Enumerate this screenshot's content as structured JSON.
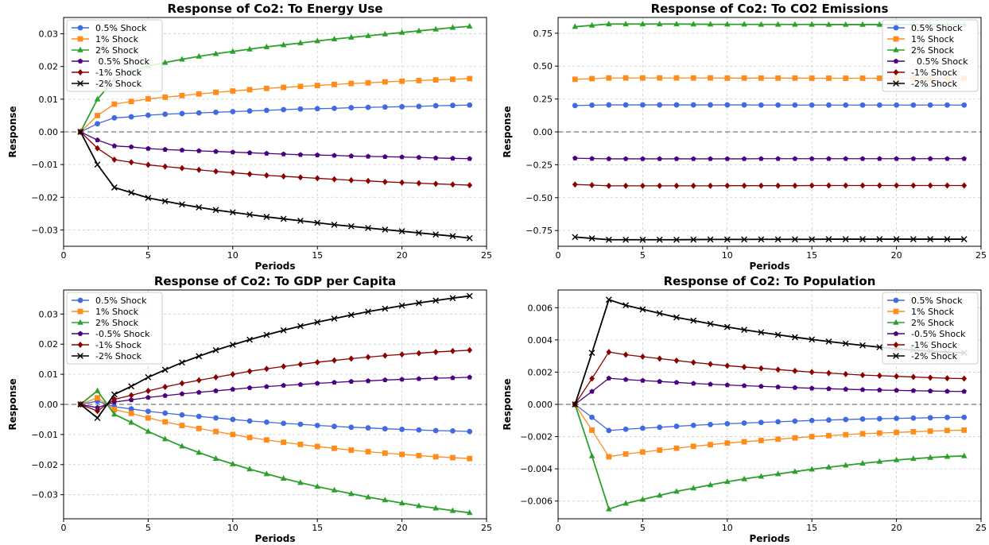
{
  "colors": {
    "0.5%": "#4169e1",
    "1%": "#ff8c1a",
    "2%": "#2ca02c",
    "-0.5%": "#4b0082",
    "-1%": "#8b0000",
    "-2%": "#000000"
  },
  "chart_data": [
    {
      "type": "line",
      "title": "Response of Co2: To Energy Use",
      "xlabel": "Periods",
      "ylabel": "Response",
      "xlim": [
        0,
        25
      ],
      "ylim": [
        -0.035,
        0.035
      ],
      "xticks": [
        0,
        5,
        10,
        15,
        20,
        25
      ],
      "xtick_labels": [
        "0",
        "5",
        "10",
        "15",
        "20",
        "25"
      ],
      "yticks": [
        -0.03,
        -0.02,
        -0.01,
        0.0,
        0.01,
        0.02,
        0.03
      ],
      "ytick_labels": [
        "−0.03",
        "−0.02",
        "−0.01",
        "0.00",
        "0.01",
        "0.02",
        "0.03"
      ],
      "grid": true,
      "legend": "top-left",
      "zero_line": true,
      "x": [
        1,
        2,
        3,
        4,
        5,
        6,
        7,
        8,
        9,
        10,
        11,
        12,
        13,
        14,
        15,
        16,
        17,
        18,
        19,
        20,
        21,
        22,
        23,
        24
      ],
      "series": [
        {
          "name": "0.5% Shock",
          "color_key": "0.5%",
          "marker": "circle",
          "values": [
            0,
            0.0025,
            0.0043,
            0.0046,
            0.0051,
            0.0054,
            0.0056,
            0.0058,
            0.006,
            0.0062,
            0.0064,
            0.0066,
            0.0068,
            0.007,
            0.0071,
            0.0072,
            0.0074,
            0.0075,
            0.0076,
            0.0077,
            0.0078,
            0.008,
            0.0081,
            0.0082
          ]
        },
        {
          "name": "1% Shock",
          "color_key": "1%",
          "marker": "square",
          "values": [
            0,
            0.005,
            0.0085,
            0.0093,
            0.0101,
            0.0106,
            0.0111,
            0.0116,
            0.0121,
            0.0125,
            0.0129,
            0.0133,
            0.0136,
            0.0139,
            0.0142,
            0.0145,
            0.0148,
            0.015,
            0.0153,
            0.0155,
            0.0157,
            0.0159,
            0.0161,
            0.0163
          ]
        },
        {
          "name": "2% Shock",
          "color_key": "2%",
          "marker": "triangle",
          "values": [
            0,
            0.01,
            0.016,
            0.0185,
            0.0202,
            0.0212,
            0.0222,
            0.0231,
            0.0239,
            0.0246,
            0.0253,
            0.026,
            0.0266,
            0.0272,
            0.0278,
            0.0284,
            0.0289,
            0.0294,
            0.0299,
            0.0304,
            0.0309,
            0.0314,
            0.0319,
            0.0323
          ]
        },
        {
          "name": " 0.5% Shock",
          "color_key": "-0.5%",
          "marker": "pentagon",
          "values": [
            0,
            -0.0025,
            -0.0043,
            -0.0046,
            -0.0051,
            -0.0054,
            -0.0056,
            -0.0058,
            -0.006,
            -0.0062,
            -0.0064,
            -0.0066,
            -0.0068,
            -0.007,
            -0.0071,
            -0.0072,
            -0.0074,
            -0.0075,
            -0.0076,
            -0.0077,
            -0.0078,
            -0.008,
            -0.0081,
            -0.0082
          ]
        },
        {
          "name": "-1% Shock",
          "color_key": "-1%",
          "marker": "diamond",
          "values": [
            0,
            -0.005,
            -0.0085,
            -0.0093,
            -0.0101,
            -0.0106,
            -0.0111,
            -0.0116,
            -0.0121,
            -0.0125,
            -0.0129,
            -0.0133,
            -0.0136,
            -0.0139,
            -0.0142,
            -0.0145,
            -0.0148,
            -0.015,
            -0.0153,
            -0.0155,
            -0.0157,
            -0.0159,
            -0.0161,
            -0.0163
          ]
        },
        {
          "name": "-2% Shock",
          "color_key": "-2%",
          "marker": "x",
          "values": [
            0,
            -0.01,
            -0.017,
            -0.0186,
            -0.0202,
            -0.0212,
            -0.0222,
            -0.0231,
            -0.0239,
            -0.0246,
            -0.0253,
            -0.026,
            -0.0266,
            -0.0272,
            -0.0278,
            -0.0284,
            -0.0289,
            -0.0294,
            -0.0299,
            -0.0304,
            -0.0309,
            -0.0314,
            -0.0319,
            -0.0325
          ]
        }
      ]
    },
    {
      "type": "line",
      "title": "Response of Co2: To CO2 Emissions",
      "xlabel": "Periods",
      "ylabel": "Response",
      "xlim": [
        0,
        25
      ],
      "ylim": [
        -0.87,
        0.87
      ],
      "xticks": [
        0,
        5,
        10,
        15,
        20,
        25
      ],
      "xtick_labels": [
        "0",
        "5",
        "10",
        "15",
        "20",
        "25"
      ],
      "yticks": [
        -0.75,
        -0.5,
        -0.25,
        0.0,
        0.25,
        0.5,
        0.75
      ],
      "ytick_labels": [
        "−0.75",
        "−0.50",
        "−0.25",
        "0.00",
        "0.25",
        "0.50",
        "0.75"
      ],
      "grid": true,
      "legend": "top-right",
      "zero_line": true,
      "x": [
        1,
        2,
        3,
        4,
        5,
        6,
        7,
        8,
        9,
        10,
        11,
        12,
        13,
        14,
        15,
        16,
        17,
        18,
        19,
        20,
        21,
        22,
        23,
        24
      ],
      "series": [
        {
          "name": "0.5% Shock",
          "color_key": "0.5%",
          "marker": "circle",
          "values": [
            0.2,
            0.203,
            0.205,
            0.205,
            0.205,
            0.205,
            0.205,
            0.205,
            0.205,
            0.205,
            0.205,
            0.204,
            0.204,
            0.204,
            0.204,
            0.204,
            0.204,
            0.204,
            0.204,
            0.204,
            0.204,
            0.204,
            0.204,
            0.204
          ]
        },
        {
          "name": "1% Shock",
          "color_key": "1%",
          "marker": "square",
          "values": [
            0.4,
            0.405,
            0.41,
            0.41,
            0.41,
            0.41,
            0.41,
            0.41,
            0.41,
            0.409,
            0.409,
            0.409,
            0.409,
            0.409,
            0.408,
            0.408,
            0.408,
            0.408,
            0.408,
            0.408,
            0.408,
            0.408,
            0.408,
            0.408
          ]
        },
        {
          "name": "2% Shock",
          "color_key": "2%",
          "marker": "triangle",
          "values": [
            0.8,
            0.81,
            0.82,
            0.82,
            0.82,
            0.82,
            0.82,
            0.819,
            0.818,
            0.818,
            0.818,
            0.817,
            0.817,
            0.817,
            0.817,
            0.816,
            0.816,
            0.816,
            0.816,
            0.816,
            0.816,
            0.816,
            0.816,
            0.816
          ]
        },
        {
          "name": "  0.5% Shock",
          "color_key": "-0.5%",
          "marker": "pentagon",
          "values": [
            -0.2,
            -0.203,
            -0.205,
            -0.205,
            -0.205,
            -0.205,
            -0.205,
            -0.205,
            -0.205,
            -0.205,
            -0.205,
            -0.204,
            -0.204,
            -0.204,
            -0.204,
            -0.204,
            -0.204,
            -0.204,
            -0.204,
            -0.204,
            -0.204,
            -0.204,
            -0.204,
            -0.204
          ]
        },
        {
          "name": "-1% Shock",
          "color_key": "-1%",
          "marker": "diamond",
          "values": [
            -0.4,
            -0.405,
            -0.41,
            -0.41,
            -0.41,
            -0.41,
            -0.41,
            -0.41,
            -0.41,
            -0.409,
            -0.409,
            -0.409,
            -0.409,
            -0.409,
            -0.408,
            -0.408,
            -0.408,
            -0.408,
            -0.408,
            -0.408,
            -0.408,
            -0.408,
            -0.408,
            -0.408
          ]
        },
        {
          "name": "-2% Shock",
          "color_key": "-2%",
          "marker": "x",
          "values": [
            -0.8,
            -0.81,
            -0.82,
            -0.82,
            -0.82,
            -0.82,
            -0.82,
            -0.819,
            -0.818,
            -0.818,
            -0.818,
            -0.817,
            -0.817,
            -0.817,
            -0.817,
            -0.816,
            -0.816,
            -0.816,
            -0.816,
            -0.816,
            -0.816,
            -0.816,
            -0.816,
            -0.816
          ]
        }
      ]
    },
    {
      "type": "line",
      "title": "Response of Co2: To GDP per Capita",
      "xlabel": "Periods",
      "ylabel": "Response",
      "xlim": [
        0,
        25
      ],
      "ylim": [
        -0.038,
        0.038
      ],
      "xticks": [
        0,
        5,
        10,
        15,
        20,
        25
      ],
      "xtick_labels": [
        "0",
        "5",
        "10",
        "15",
        "20",
        "25"
      ],
      "yticks": [
        -0.03,
        -0.02,
        -0.01,
        0.0,
        0.01,
        0.02,
        0.03
      ],
      "ytick_labels": [
        "−0.03",
        "−0.02",
        "−0.01",
        "0.00",
        "0.01",
        "0.02",
        "0.03"
      ],
      "grid": true,
      "legend": "top-left",
      "zero_line": true,
      "x": [
        1,
        2,
        3,
        4,
        5,
        6,
        7,
        8,
        9,
        10,
        11,
        12,
        13,
        14,
        15,
        16,
        17,
        18,
        19,
        20,
        21,
        22,
        23,
        24
      ],
      "series": [
        {
          "name": "0.5% Shock",
          "color_key": "0.5%",
          "marker": "circle",
          "values": [
            0,
            0.0011,
            -0.0008,
            -0.0015,
            -0.0023,
            -0.0029,
            -0.0035,
            -0.004,
            -0.0045,
            -0.005,
            -0.0055,
            -0.0059,
            -0.0063,
            -0.0066,
            -0.007,
            -0.0073,
            -0.0076,
            -0.0078,
            -0.0081,
            -0.0083,
            -0.0085,
            -0.0087,
            -0.0088,
            -0.009
          ]
        },
        {
          "name": "1% Shock",
          "color_key": "1%",
          "marker": "square",
          "values": [
            0,
            0.0022,
            -0.0017,
            -0.003,
            -0.0045,
            -0.0058,
            -0.007,
            -0.008,
            -0.009,
            -0.01,
            -0.011,
            -0.0118,
            -0.0126,
            -0.0133,
            -0.014,
            -0.0146,
            -0.0152,
            -0.0157,
            -0.0162,
            -0.0166,
            -0.017,
            -0.0174,
            -0.0177,
            -0.018
          ]
        },
        {
          "name": "2% Shock",
          "color_key": "2%",
          "marker": "triangle",
          "values": [
            0,
            0.0045,
            -0.0033,
            -0.006,
            -0.009,
            -0.0115,
            -0.0139,
            -0.016,
            -0.018,
            -0.0198,
            -0.0215,
            -0.0231,
            -0.0246,
            -0.026,
            -0.0273,
            -0.0285,
            -0.0297,
            -0.0308,
            -0.0318,
            -0.0328,
            -0.0337,
            -0.0345,
            -0.0353,
            -0.036
          ]
        },
        {
          "name": "-0.5% Shock",
          "color_key": "-0.5%",
          "marker": "pentagon",
          "values": [
            0,
            -0.0011,
            0.0008,
            0.0015,
            0.0023,
            0.0029,
            0.0035,
            0.004,
            0.0045,
            0.005,
            0.0055,
            0.0059,
            0.0063,
            0.0066,
            0.007,
            0.0073,
            0.0076,
            0.0078,
            0.0081,
            0.0083,
            0.0085,
            0.0087,
            0.0088,
            0.009
          ]
        },
        {
          "name": "-1% Shock",
          "color_key": "-1%",
          "marker": "diamond",
          "values": [
            0,
            -0.0022,
            0.0017,
            0.003,
            0.0045,
            0.0058,
            0.007,
            0.008,
            0.009,
            0.01,
            0.011,
            0.0118,
            0.0126,
            0.0133,
            0.014,
            0.0146,
            0.0152,
            0.0157,
            0.0162,
            0.0166,
            0.017,
            0.0174,
            0.0177,
            0.018
          ]
        },
        {
          "name": "-2% Shock",
          "color_key": "-2%",
          "marker": "x",
          "values": [
            0,
            -0.0045,
            0.0033,
            0.006,
            0.009,
            0.0115,
            0.0139,
            0.016,
            0.018,
            0.0198,
            0.0215,
            0.0231,
            0.0246,
            0.026,
            0.0273,
            0.0285,
            0.0297,
            0.0308,
            0.0318,
            0.0328,
            0.0337,
            0.0345,
            0.0353,
            0.036
          ]
        }
      ]
    },
    {
      "type": "line",
      "title": "Response of Co2: To Population",
      "xlabel": "Periods",
      "ylabel": "Response",
      "xlim": [
        0,
        25
      ],
      "ylim": [
        -0.0071,
        0.0071
      ],
      "xticks": [
        0,
        5,
        10,
        15,
        20,
        25
      ],
      "xtick_labels": [
        "0",
        "5",
        "10",
        "15",
        "20",
        "25"
      ],
      "yticks": [
        -0.006,
        -0.004,
        -0.002,
        0.0,
        0.002,
        0.004,
        0.006
      ],
      "ytick_labels": [
        "−0.006",
        "−0.004",
        "−0.002",
        "0.000",
        "0.002",
        "0.004",
        "0.006"
      ],
      "grid": true,
      "legend": "top-right",
      "zero_line": true,
      "x": [
        1,
        2,
        3,
        4,
        5,
        6,
        7,
        8,
        9,
        10,
        11,
        12,
        13,
        14,
        15,
        16,
        17,
        18,
        19,
        20,
        21,
        22,
        23,
        24
      ],
      "series": [
        {
          "name": "0.5% Shock",
          "color_key": "0.5%",
          "marker": "circle",
          "values": [
            0,
            -0.0008,
            -0.00162,
            -0.00154,
            -0.00148,
            -0.00142,
            -0.00136,
            -0.0013,
            -0.00125,
            -0.0012,
            -0.00116,
            -0.00112,
            -0.00108,
            -0.00104,
            -0.001,
            -0.00097,
            -0.00094,
            -0.00091,
            -0.00089,
            -0.00087,
            -0.00085,
            -0.00083,
            -0.00081,
            -0.0008
          ]
        },
        {
          "name": "1% Shock",
          "color_key": "1%",
          "marker": "square",
          "values": [
            0,
            -0.0016,
            -0.00325,
            -0.00308,
            -0.00296,
            -0.00284,
            -0.00272,
            -0.0026,
            -0.0025,
            -0.0024,
            -0.00232,
            -0.00224,
            -0.00216,
            -0.00208,
            -0.002,
            -0.00194,
            -0.00188,
            -0.00182,
            -0.00178,
            -0.00174,
            -0.0017,
            -0.00166,
            -0.00162,
            -0.0016
          ]
        },
        {
          "name": "2% Shock",
          "color_key": "2%",
          "marker": "triangle",
          "values": [
            0,
            -0.0032,
            -0.0065,
            -0.00615,
            -0.0059,
            -0.00565,
            -0.0054,
            -0.0052,
            -0.005,
            -0.0048,
            -0.00463,
            -0.00447,
            -0.00432,
            -0.00417,
            -0.00403,
            -0.0039,
            -0.00378,
            -0.00366,
            -0.00355,
            -0.00345,
            -0.00337,
            -0.0033,
            -0.00324,
            -0.0032
          ]
        },
        {
          "name": "-0.5% Shock",
          "color_key": "-0.5%",
          "marker": "pentagon",
          "values": [
            0,
            0.0008,
            0.00162,
            0.00154,
            0.00148,
            0.00142,
            0.00136,
            0.0013,
            0.00125,
            0.0012,
            0.00116,
            0.00112,
            0.00108,
            0.00104,
            0.001,
            0.00097,
            0.00094,
            0.00091,
            0.00089,
            0.00087,
            0.00085,
            0.00083,
            0.00081,
            0.0008
          ]
        },
        {
          "name": "-1% Shock",
          "color_key": "-1%",
          "marker": "diamond",
          "values": [
            0,
            0.0016,
            0.00325,
            0.00308,
            0.00296,
            0.00284,
            0.00272,
            0.0026,
            0.0025,
            0.0024,
            0.00232,
            0.00224,
            0.00216,
            0.00208,
            0.002,
            0.00194,
            0.00188,
            0.00182,
            0.00178,
            0.00174,
            0.0017,
            0.00166,
            0.00162,
            0.0016
          ]
        },
        {
          "name": "-2% Shock",
          "color_key": "-2%",
          "marker": "x",
          "values": [
            0,
            0.0032,
            0.0065,
            0.00615,
            0.0059,
            0.00565,
            0.0054,
            0.0052,
            0.005,
            0.0048,
            0.00463,
            0.00447,
            0.00432,
            0.00417,
            0.00403,
            0.0039,
            0.00378,
            0.00366,
            0.00355,
            0.00345,
            0.00337,
            0.0033,
            0.00324,
            0.0032
          ]
        }
      ]
    }
  ]
}
